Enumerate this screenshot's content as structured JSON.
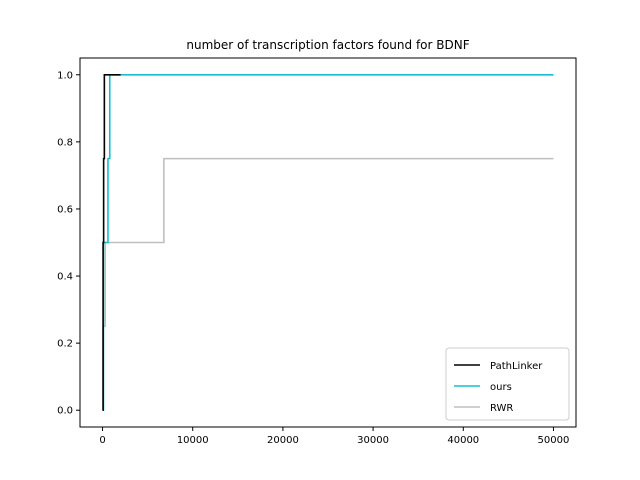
{
  "chart_data": {
    "type": "line",
    "title": "number of transcription factors found for BDNF",
    "xlabel": "",
    "ylabel": "",
    "xlim": [
      -2500,
      52500
    ],
    "ylim": [
      -0.05,
      1.05
    ],
    "xticks": [
      0,
      10000,
      20000,
      30000,
      40000,
      50000
    ],
    "xtick_labels": [
      "0",
      "10000",
      "20000",
      "30000",
      "40000",
      "50000"
    ],
    "yticks": [
      0.0,
      0.2,
      0.4,
      0.6,
      0.8,
      1.0
    ],
    "ytick_labels": [
      "0.0",
      "0.2",
      "0.4",
      "0.6",
      "0.8",
      "1.0"
    ],
    "grid": false,
    "legend_position": "bottom-right",
    "series": [
      {
        "name": "PathLinker",
        "color": "#000000",
        "step": true,
        "x": [
          0,
          60,
          120,
          200,
          300,
          2000
        ],
        "y": [
          0.0,
          0.5,
          0.75,
          1.0,
          1.0,
          1.0
        ]
      },
      {
        "name": "ours",
        "color": "#17becf",
        "step": true,
        "x": [
          0,
          100,
          600,
          800,
          50000
        ],
        "y": [
          0.0,
          0.5,
          0.75,
          1.0,
          1.0
        ]
      },
      {
        "name": "RWR",
        "color": "#bfbfbf",
        "step": true,
        "x": [
          0,
          50,
          300,
          6800,
          50000
        ],
        "y": [
          0.0,
          0.25,
          0.5,
          0.75,
          0.75
        ]
      }
    ]
  }
}
